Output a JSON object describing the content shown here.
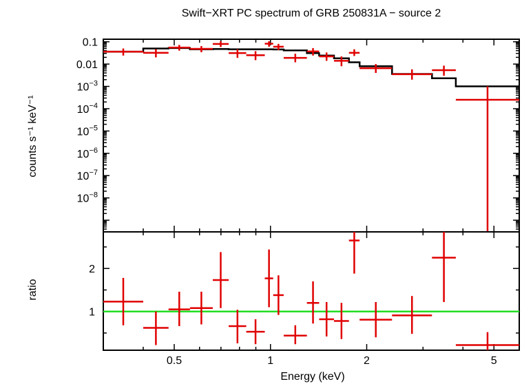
{
  "chart_data": [
    {
      "panel": "spectrum",
      "type": "scatter",
      "title": "Swift−XRT PC spectrum of GRB 250831A − source 2",
      "ylabel": "counts s⁻¹ keV⁻¹",
      "xlabel": "",
      "xscale": "log",
      "yscale": "log",
      "xlim": [
        0.3,
        6.0
      ],
      "ylim": [
        3e-10,
        0.13
      ],
      "yticks": [
        {
          "v": 0.1,
          "label": "0.1"
        },
        {
          "v": 0.01,
          "label": "0.01"
        },
        {
          "v": 0.001,
          "base": "10",
          "exp": "−3"
        },
        {
          "v": 0.0001,
          "base": "10",
          "exp": "−4"
        },
        {
          "v": 1e-05,
          "base": "10",
          "exp": "−5"
        },
        {
          "v": 1e-06,
          "base": "10",
          "exp": "−6"
        },
        {
          "v": 1e-07,
          "base": "10",
          "exp": "−7"
        },
        {
          "v": 1e-08,
          "base": "10",
          "exp": "−8"
        }
      ],
      "data_color": "#e00000",
      "model_color": "#000000",
      "data": [
        {
          "xlo": 0.3,
          "xhi": 0.4,
          "y": 0.036,
          "ylo": 0.024,
          "yhi": 0.05
        },
        {
          "xlo": 0.4,
          "xhi": 0.48,
          "y": 0.032,
          "ylo": 0.02,
          "yhi": 0.046
        },
        {
          "xlo": 0.48,
          "xhi": 0.56,
          "y": 0.055,
          "ylo": 0.04,
          "yhi": 0.072
        },
        {
          "xlo": 0.56,
          "xhi": 0.66,
          "y": 0.048,
          "ylo": 0.034,
          "yhi": 0.064
        },
        {
          "xlo": 0.66,
          "xhi": 0.74,
          "y": 0.08,
          "ylo": 0.058,
          "yhi": 0.105
        },
        {
          "xlo": 0.74,
          "xhi": 0.84,
          "y": 0.031,
          "ylo": 0.019,
          "yhi": 0.046
        },
        {
          "xlo": 0.84,
          "xhi": 0.96,
          "y": 0.025,
          "ylo": 0.015,
          "yhi": 0.038
        },
        {
          "xlo": 0.96,
          "xhi": 1.02,
          "y": 0.082,
          "ylo": 0.06,
          "yhi": 0.105
        },
        {
          "xlo": 1.02,
          "xhi": 1.1,
          "y": 0.06,
          "ylo": 0.042,
          "yhi": 0.08
        },
        {
          "xlo": 1.1,
          "xhi": 1.3,
          "y": 0.019,
          "ylo": 0.012,
          "yhi": 0.029
        },
        {
          "xlo": 1.3,
          "xhi": 1.42,
          "y": 0.037,
          "ylo": 0.024,
          "yhi": 0.052
        },
        {
          "xlo": 1.42,
          "xhi": 1.58,
          "y": 0.022,
          "ylo": 0.014,
          "yhi": 0.033
        },
        {
          "xlo": 1.58,
          "xhi": 1.76,
          "y": 0.014,
          "ylo": 0.008,
          "yhi": 0.022
        },
        {
          "xlo": 1.76,
          "xhi": 1.9,
          "y": 0.032,
          "ylo": 0.023,
          "yhi": 0.046
        },
        {
          "xlo": 1.9,
          "xhi": 2.4,
          "y": 0.0065,
          "ylo": 0.004,
          "yhi": 0.01
        },
        {
          "xlo": 2.4,
          "xhi": 3.2,
          "y": 0.0035,
          "ylo": 0.002,
          "yhi": 0.0058
        },
        {
          "xlo": 3.2,
          "xhi": 3.8,
          "y": 0.0053,
          "ylo": 0.003,
          "yhi": 0.0085
        },
        {
          "xlo": 3.8,
          "xhi": 6.0,
          "y": 0.00025,
          "ylo": 3e-10,
          "yhi": 0.001
        }
      ],
      "model": [
        {
          "xlo": 0.3,
          "xhi": 0.4,
          "y": 0.036
        },
        {
          "xlo": 0.4,
          "xhi": 0.48,
          "y": 0.05
        },
        {
          "xlo": 0.48,
          "xhi": 0.56,
          "y": 0.052
        },
        {
          "xlo": 0.56,
          "xhi": 0.66,
          "y": 0.046
        },
        {
          "xlo": 0.66,
          "xhi": 0.74,
          "y": 0.047
        },
        {
          "xlo": 0.74,
          "xhi": 0.84,
          "y": 0.046
        },
        {
          "xlo": 0.84,
          "xhi": 0.96,
          "y": 0.046
        },
        {
          "xlo": 0.96,
          "xhi": 1.02,
          "y": 0.046
        },
        {
          "xlo": 1.02,
          "xhi": 1.1,
          "y": 0.045
        },
        {
          "xlo": 1.1,
          "xhi": 1.3,
          "y": 0.041
        },
        {
          "xlo": 1.3,
          "xhi": 1.42,
          "y": 0.031
        },
        {
          "xlo": 1.42,
          "xhi": 1.58,
          "y": 0.024
        },
        {
          "xlo": 1.58,
          "xhi": 1.76,
          "y": 0.018
        },
        {
          "xlo": 1.76,
          "xhi": 1.9,
          "y": 0.012
        },
        {
          "xlo": 1.9,
          "xhi": 2.4,
          "y": 0.008
        },
        {
          "xlo": 2.4,
          "xhi": 3.2,
          "y": 0.0036
        },
        {
          "xlo": 3.2,
          "xhi": 3.8,
          "y": 0.0023
        },
        {
          "xlo": 3.8,
          "xhi": 6.0,
          "y": 0.001
        }
      ]
    },
    {
      "panel": "ratio",
      "type": "scatter",
      "ylabel": "ratio",
      "xlabel": "Energy (keV)",
      "xscale": "log",
      "yscale": "linear",
      "xlim": [
        0.3,
        6.0
      ],
      "ylim": [
        0.1,
        2.85
      ],
      "yticks": [
        {
          "v": 1,
          "label": "1"
        },
        {
          "v": 2,
          "label": "2"
        }
      ],
      "xticks": [
        {
          "v": 0.5,
          "label": "0.5"
        },
        {
          "v": 1,
          "label": "1"
        },
        {
          "v": 2,
          "label": "2"
        },
        {
          "v": 5,
          "label": "5"
        }
      ],
      "reference_line": {
        "y": 1,
        "color": "#22dd22"
      },
      "data_color": "#e00000",
      "data": [
        {
          "xlo": 0.3,
          "xhi": 0.4,
          "y": 1.23,
          "ylo": 0.68,
          "yhi": 1.78
        },
        {
          "xlo": 0.4,
          "xhi": 0.48,
          "y": 0.62,
          "ylo": 0.22,
          "yhi": 1.0
        },
        {
          "xlo": 0.48,
          "xhi": 0.56,
          "y": 1.05,
          "ylo": 0.66,
          "yhi": 1.46
        },
        {
          "xlo": 0.56,
          "xhi": 0.66,
          "y": 1.08,
          "ylo": 0.7,
          "yhi": 1.46
        },
        {
          "xlo": 0.66,
          "xhi": 0.74,
          "y": 1.73,
          "ylo": 1.08,
          "yhi": 2.38
        },
        {
          "xlo": 0.74,
          "xhi": 0.84,
          "y": 0.66,
          "ylo": 0.26,
          "yhi": 1.04
        },
        {
          "xlo": 0.84,
          "xhi": 0.96,
          "y": 0.53,
          "ylo": 0.24,
          "yhi": 0.82
        },
        {
          "xlo": 0.96,
          "xhi": 1.02,
          "y": 1.77,
          "ylo": 1.1,
          "yhi": 2.44
        },
        {
          "xlo": 1.02,
          "xhi": 1.1,
          "y": 1.38,
          "ylo": 0.92,
          "yhi": 1.84
        },
        {
          "xlo": 1.1,
          "xhi": 1.3,
          "y": 0.44,
          "ylo": 0.24,
          "yhi": 0.68
        },
        {
          "xlo": 1.3,
          "xhi": 1.42,
          "y": 1.2,
          "ylo": 0.72,
          "yhi": 1.7
        },
        {
          "xlo": 1.42,
          "xhi": 1.58,
          "y": 0.82,
          "ylo": 0.42,
          "yhi": 1.22
        },
        {
          "xlo": 1.58,
          "xhi": 1.76,
          "y": 0.78,
          "ylo": 0.36,
          "yhi": 1.2
        },
        {
          "xlo": 1.76,
          "xhi": 1.9,
          "y": 2.65,
          "ylo": 1.88,
          "yhi": 2.85
        },
        {
          "xlo": 1.9,
          "xhi": 2.4,
          "y": 0.81,
          "ylo": 0.4,
          "yhi": 1.22
        },
        {
          "xlo": 2.4,
          "xhi": 3.2,
          "y": 0.91,
          "ylo": 0.48,
          "yhi": 1.36
        },
        {
          "xlo": 3.2,
          "xhi": 3.8,
          "y": 2.25,
          "ylo": 1.22,
          "yhi": 2.85
        },
        {
          "xlo": 3.8,
          "xhi": 6.0,
          "y": 0.22,
          "ylo": 0.1,
          "yhi": 0.52
        }
      ]
    }
  ]
}
